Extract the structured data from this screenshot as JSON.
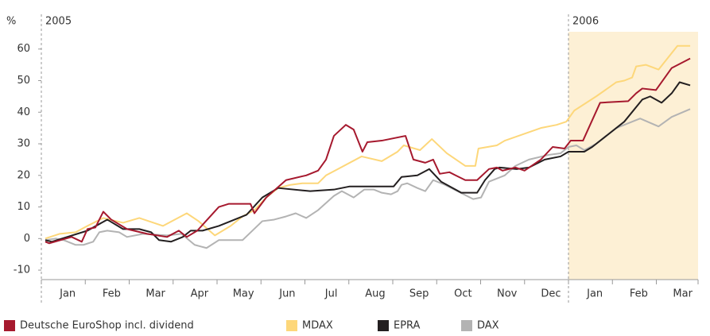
{
  "chart_data": {
    "type": "line",
    "y_unit": "%",
    "year_labels": [
      "2005",
      "2006"
    ],
    "categories": [
      "Jan",
      "Feb",
      "Mar",
      "Apr",
      "May",
      "Jun",
      "Jul",
      "Aug",
      "Sep",
      "Oct",
      "Nov",
      "Dec",
      "Jan",
      "Feb",
      "Mar"
    ],
    "xlim": [
      0,
      14.95
    ],
    "ylim": [
      -13,
      71
    ],
    "yticks": [
      -10,
      0,
      10,
      20,
      30,
      40,
      50,
      60
    ],
    "grid": false,
    "legend": "bottom",
    "series": [
      {
        "name": "MDAX",
        "color": "#fdd77a",
        "x": [
          0.09,
          0.42,
          0.78,
          1.05,
          1.41,
          1.86,
          2.23,
          2.77,
          3.31,
          3.58,
          3.95,
          4.31,
          4.58,
          4.85,
          5.12,
          5.39,
          5.67,
          5.94,
          6.3,
          6.48,
          6.75,
          7.29,
          7.75,
          8.11,
          8.25,
          8.62,
          8.89,
          9.23,
          9.65,
          9.88,
          9.95,
          10.37,
          10.55,
          11.37,
          11.73,
          11.95,
          12.13,
          12.63,
          13.09,
          13.27,
          13.45,
          13.54,
          13.76,
          14.05,
          14.48,
          14.77
        ],
        "values": [
          0,
          1.5,
          2,
          4,
          6.5,
          5,
          6.5,
          4,
          8,
          5.5,
          1,
          4,
          7,
          9,
          13,
          16,
          17,
          17.5,
          17.5,
          20,
          22,
          26,
          24.5,
          27.5,
          29.5,
          28,
          31.5,
          27,
          23,
          23,
          28.5,
          29.5,
          31,
          35,
          36,
          37,
          40.5,
          45,
          49.5,
          50,
          51,
          54.5,
          55,
          53.5,
          61,
          61
        ]
      },
      {
        "name": "DAX",
        "color": "#b3b3b3",
        "x": [
          0.09,
          0.33,
          0.51,
          0.78,
          0.96,
          1.18,
          1.32,
          1.5,
          1.77,
          1.95,
          2.32,
          2.86,
          3.19,
          3.49,
          3.76,
          4.04,
          4.58,
          5.03,
          5.3,
          5.57,
          5.79,
          6.03,
          6.3,
          6.66,
          6.84,
          7.11,
          7.35,
          7.57,
          7.75,
          7.96,
          8.11,
          8.2,
          8.33,
          8.56,
          8.74,
          8.92,
          9.19,
          9.47,
          9.83,
          10.01,
          10.19,
          10.55,
          10.79,
          11.1,
          11.55,
          11.82,
          12.0,
          12.18,
          12.36,
          12.63,
          13.09,
          13.63,
          14.05,
          14.35,
          14.77
        ],
        "values": [
          -0.5,
          0,
          -0.5,
          -2,
          -2,
          -1,
          2,
          2.5,
          2,
          0.5,
          1.5,
          1,
          1.5,
          -2,
          -3,
          -0.5,
          -0.5,
          5.5,
          6,
          7,
          8,
          6.5,
          9,
          13.5,
          15,
          13,
          15.5,
          15.5,
          14.5,
          14,
          15,
          17,
          17.5,
          16,
          15,
          18.5,
          17,
          15,
          12.5,
          13,
          18,
          20,
          23,
          25,
          26.5,
          27,
          29,
          29.5,
          28,
          30,
          35,
          38,
          35.5,
          38.5,
          41
        ]
      },
      {
        "name": "EPRA",
        "color": "#231f20",
        "x": [
          0.09,
          0.24,
          1.05,
          1.5,
          1.86,
          2.23,
          2.5,
          2.68,
          2.95,
          3.22,
          3.4,
          3.67,
          4.04,
          4.4,
          4.67,
          5.03,
          5.39,
          6.12,
          6.66,
          7.02,
          8.02,
          8.2,
          8.56,
          8.83,
          9.1,
          9.56,
          9.92,
          10.1,
          10.32,
          10.43,
          10.82,
          11.1,
          11.46,
          11.82,
          12.0,
          12.36,
          12.54,
          13.27,
          13.68,
          13.86,
          14.12,
          14.35,
          14.53,
          14.77
        ],
        "values": [
          -0.5,
          -1,
          2.5,
          6,
          3,
          3,
          2,
          -0.5,
          -1,
          0.5,
          2.5,
          2.5,
          4,
          6,
          7.5,
          13,
          16,
          15,
          15.5,
          16.5,
          16.5,
          19.5,
          20,
          22,
          18,
          14.5,
          14.5,
          18.5,
          22,
          22.5,
          22,
          22.5,
          25,
          26,
          27.5,
          27.5,
          29,
          37,
          44,
          45,
          43,
          46,
          49.5,
          48.5
        ]
      },
      {
        "name": "Deutsche EuroShop incl. dividend",
        "color": "#a6192e",
        "x": [
          0.09,
          0.18,
          0.69,
          0.92,
          1.05,
          1.23,
          1.41,
          1.59,
          1.95,
          2.41,
          2.86,
          3.13,
          3.31,
          3.55,
          4.04,
          4.27,
          4.76,
          4.85,
          5.12,
          5.57,
          6.03,
          6.3,
          6.48,
          6.66,
          6.93,
          7.11,
          7.31,
          7.42,
          7.75,
          8.29,
          8.47,
          8.74,
          8.92,
          9.07,
          9.29,
          9.43,
          9.65,
          9.92,
          10.19,
          10.37,
          10.5,
          10.79,
          11.0,
          11.37,
          11.64,
          11.91,
          12.05,
          12.33,
          12.72,
          13.36,
          13.54,
          13.68,
          13.99,
          14.35,
          14.77
        ],
        "values": [
          -1,
          -1.5,
          0.5,
          -1,
          3,
          3.5,
          8.5,
          6,
          3,
          1.5,
          0.5,
          2.5,
          0.5,
          2.5,
          10,
          11,
          11,
          8,
          13,
          18.5,
          20,
          21.5,
          25,
          32.5,
          36,
          34.5,
          27.5,
          30.5,
          31,
          32.5,
          25,
          24,
          25,
          20.5,
          21,
          20,
          18.5,
          18.5,
          22,
          22.5,
          21.5,
          22.5,
          21.5,
          25,
          29,
          28.5,
          31,
          31,
          43,
          43.5,
          46,
          47.5,
          47,
          54,
          57
        ]
      }
    ]
  }
}
